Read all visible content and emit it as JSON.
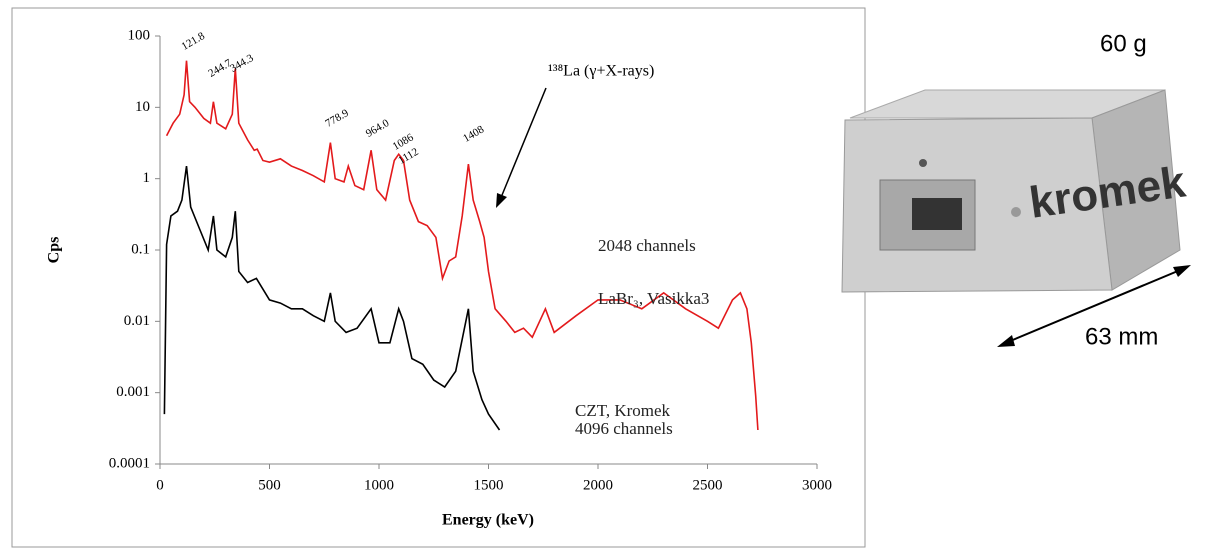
{
  "chart_data": {
    "type": "line",
    "x_label": "Energy (keV)",
    "y_label": "Cps",
    "xlim": [
      0,
      3000
    ],
    "xticks": [
      0,
      500,
      1000,
      1500,
      2000,
      2500,
      3000
    ],
    "ylim": [
      0.0001,
      100
    ],
    "yticks": [
      0.0001,
      0.001,
      0.01,
      0.1,
      1,
      10,
      100
    ],
    "ylog": true,
    "series": [
      {
        "name": "LaBr₃, Vasikka3",
        "note": "2048 channels",
        "color": "#e31a1c",
        "x": [
          30,
          60,
          90,
          110,
          121,
          135,
          160,
          200,
          230,
          244,
          260,
          300,
          330,
          344,
          360,
          400,
          430,
          444,
          470,
          500,
          550,
          600,
          650,
          700,
          750,
          778,
          800,
          840,
          860,
          890,
          930,
          964,
          990,
          1030,
          1070,
          1090,
          1112,
          1140,
          1180,
          1220,
          1260,
          1290,
          1320,
          1350,
          1380,
          1408,
          1430,
          1460,
          1480,
          1500,
          1530,
          1580,
          1620,
          1660,
          1700,
          1760,
          1800,
          1900,
          2000,
          2100,
          2200,
          2300,
          2400,
          2500,
          2550,
          2614,
          2650,
          2680,
          2700,
          2720,
          2730
        ],
        "values": [
          4,
          6,
          8,
          15,
          45,
          12,
          10,
          7,
          6,
          12,
          6,
          5,
          8,
          35,
          6,
          3.5,
          2.5,
          2.6,
          1.8,
          1.7,
          1.9,
          1.5,
          1.3,
          1.1,
          0.9,
          3.2,
          1.0,
          0.9,
          1.5,
          0.8,
          0.7,
          2.5,
          0.7,
          0.5,
          1.8,
          2.2,
          1.8,
          0.5,
          0.25,
          0.22,
          0.15,
          0.04,
          0.07,
          0.08,
          0.3,
          1.6,
          0.5,
          0.25,
          0.15,
          0.05,
          0.015,
          0.01,
          0.007,
          0.008,
          0.006,
          0.015,
          0.007,
          0.012,
          0.02,
          0.02,
          0.015,
          0.025,
          0.015,
          0.01,
          0.008,
          0.02,
          0.025,
          0.015,
          0.005,
          0.0009,
          0.0003
        ]
      },
      {
        "name": "CZT, Kromek",
        "note": "4096 channels",
        "color": "#000000",
        "x": [
          20,
          30,
          50,
          80,
          100,
          121,
          140,
          180,
          220,
          244,
          260,
          300,
          330,
          344,
          360,
          400,
          440,
          500,
          550,
          600,
          650,
          700,
          750,
          778,
          800,
          850,
          900,
          964,
          1000,
          1050,
          1090,
          1112,
          1150,
          1200,
          1250,
          1300,
          1350,
          1408,
          1430,
          1470,
          1500,
          1550
        ],
        "values": [
          0.0005,
          0.12,
          0.3,
          0.35,
          0.5,
          1.5,
          0.4,
          0.2,
          0.1,
          0.3,
          0.1,
          0.08,
          0.15,
          0.35,
          0.05,
          0.035,
          0.04,
          0.02,
          0.018,
          0.015,
          0.015,
          0.012,
          0.01,
          0.025,
          0.01,
          0.007,
          0.008,
          0.015,
          0.005,
          0.005,
          0.015,
          0.01,
          0.003,
          0.0025,
          0.0015,
          0.0012,
          0.002,
          0.015,
          0.002,
          0.0008,
          0.0005,
          0.0003
        ]
      }
    ],
    "peaks": [
      {
        "x": 121.8,
        "label": "121.8"
      },
      {
        "x": 244.7,
        "label": "244.7"
      },
      {
        "x": 344.3,
        "label": "344.3"
      },
      {
        "x": 778.9,
        "label": "778.9"
      },
      {
        "x": 964.0,
        "label": "964.0"
      },
      {
        "x": 1086,
        "label": "1086"
      },
      {
        "x": 1112,
        "label": "1112"
      },
      {
        "x": 1408,
        "label": "1408"
      }
    ],
    "annotation": "¹³⁸La (γ+X-rays)"
  },
  "photo": {
    "weight": "60 g",
    "length": "63 mm",
    "brand": "kromek"
  }
}
